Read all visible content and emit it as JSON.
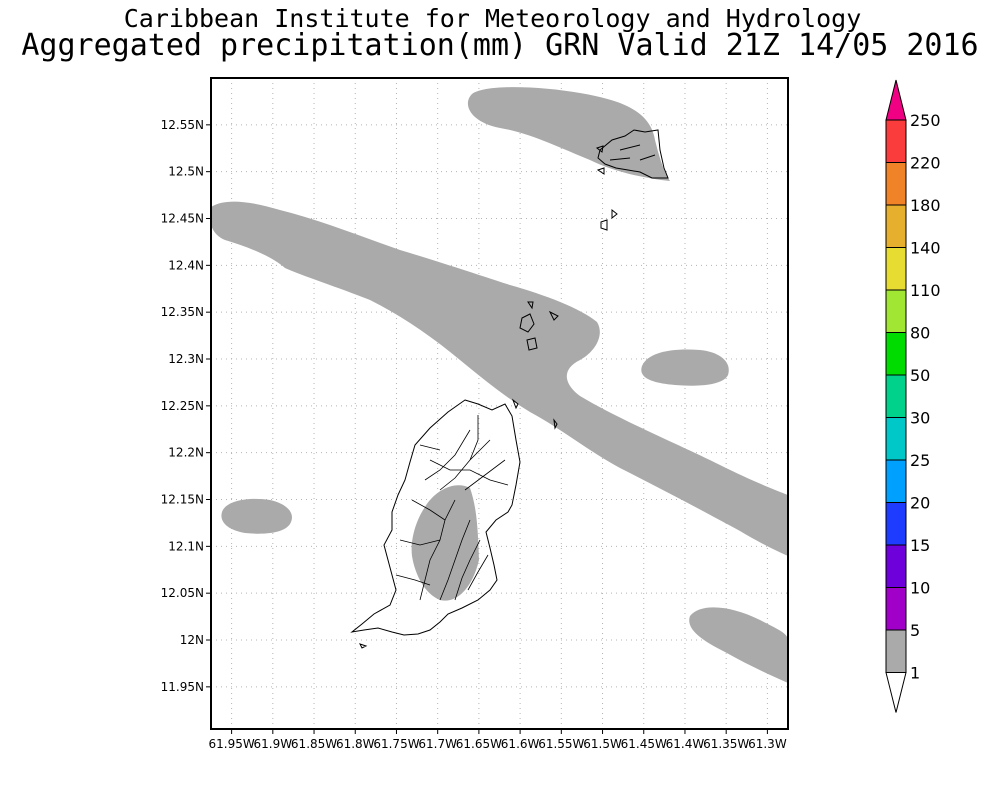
{
  "header": {
    "title": "Caribbean Institute for Meteorology and Hydrology",
    "subtitle": "Aggregated precipitation(mm) GRN Valid 21Z 14/05 2016"
  },
  "map": {
    "lat_ticks": [
      "12.55N",
      "12.5N",
      "12.45N",
      "12.4N",
      "12.35N",
      "12.3N",
      "12.25N",
      "12.2N",
      "12.15N",
      "12.1N",
      "12.05N",
      "12N",
      "11.95N"
    ],
    "lon_ticks": [
      "61.95W",
      "61.9W",
      "61.85W",
      "61.8W",
      "61.75W",
      "61.7W",
      "61.65W",
      "61.6W",
      "61.55W",
      "61.5W",
      "61.45W",
      "61.4W",
      "61.35W",
      "61.3W"
    ],
    "lat_range": [
      11.905,
      12.6
    ],
    "lon_range": [
      -61.975,
      -61.275
    ],
    "rain_color": "#aaaaaa",
    "grid": true
  },
  "colorbar": {
    "labels": [
      "1",
      "5",
      "10",
      "15",
      "20",
      "25",
      "30",
      "50",
      "80",
      "110",
      "140",
      "180",
      "220",
      "250"
    ],
    "colors": [
      "#ffffff",
      "#aaaaaa",
      "#a000c8",
      "#6e00dc",
      "#1e3cff",
      "#00a0ff",
      "#00c8c8",
      "#00d28c",
      "#00dc00",
      "#a0e632",
      "#e6dc32",
      "#e6af2d",
      "#f08228",
      "#fa3c3c",
      "#f00082"
    ]
  }
}
